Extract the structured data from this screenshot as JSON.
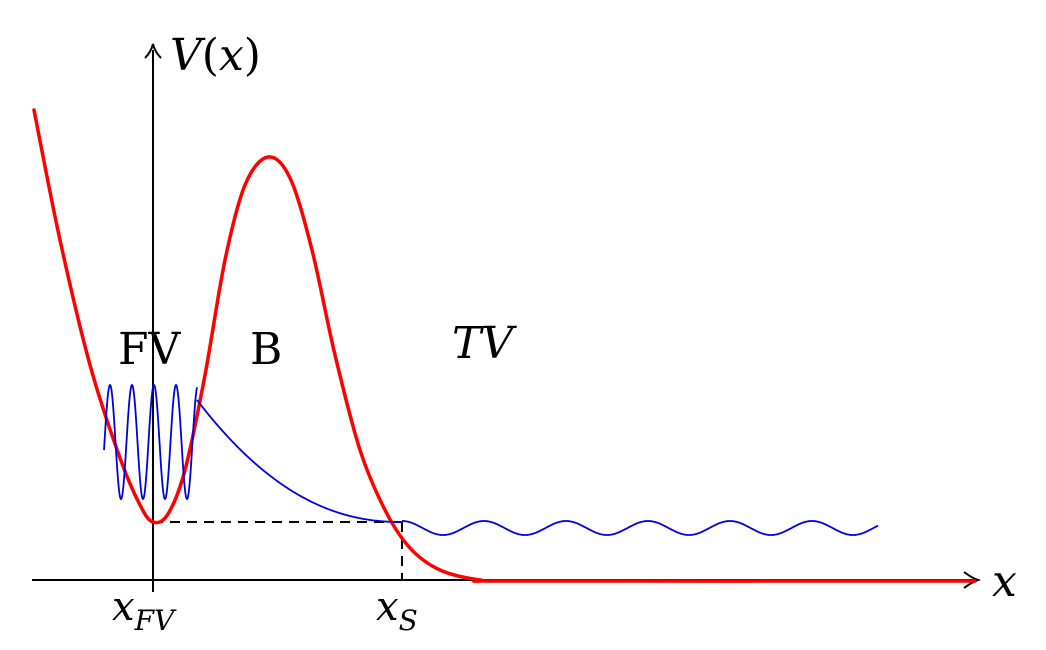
{
  "axes": {
    "y_label_fn": "V",
    "y_label_arg": "x",
    "x_label": "x"
  },
  "ticks": {
    "x_fv_main": "x",
    "x_fv_sub": "FV",
    "x_s_main": "x",
    "x_s_sub": "S"
  },
  "regions": {
    "false_vacuum": "FV",
    "barrier": "B",
    "true_vacuum": "TV"
  },
  "colors": {
    "potential": "#ff0000",
    "wavefunction": "#0000dd",
    "axis": "#000000",
    "guide": "#000000"
  }
}
